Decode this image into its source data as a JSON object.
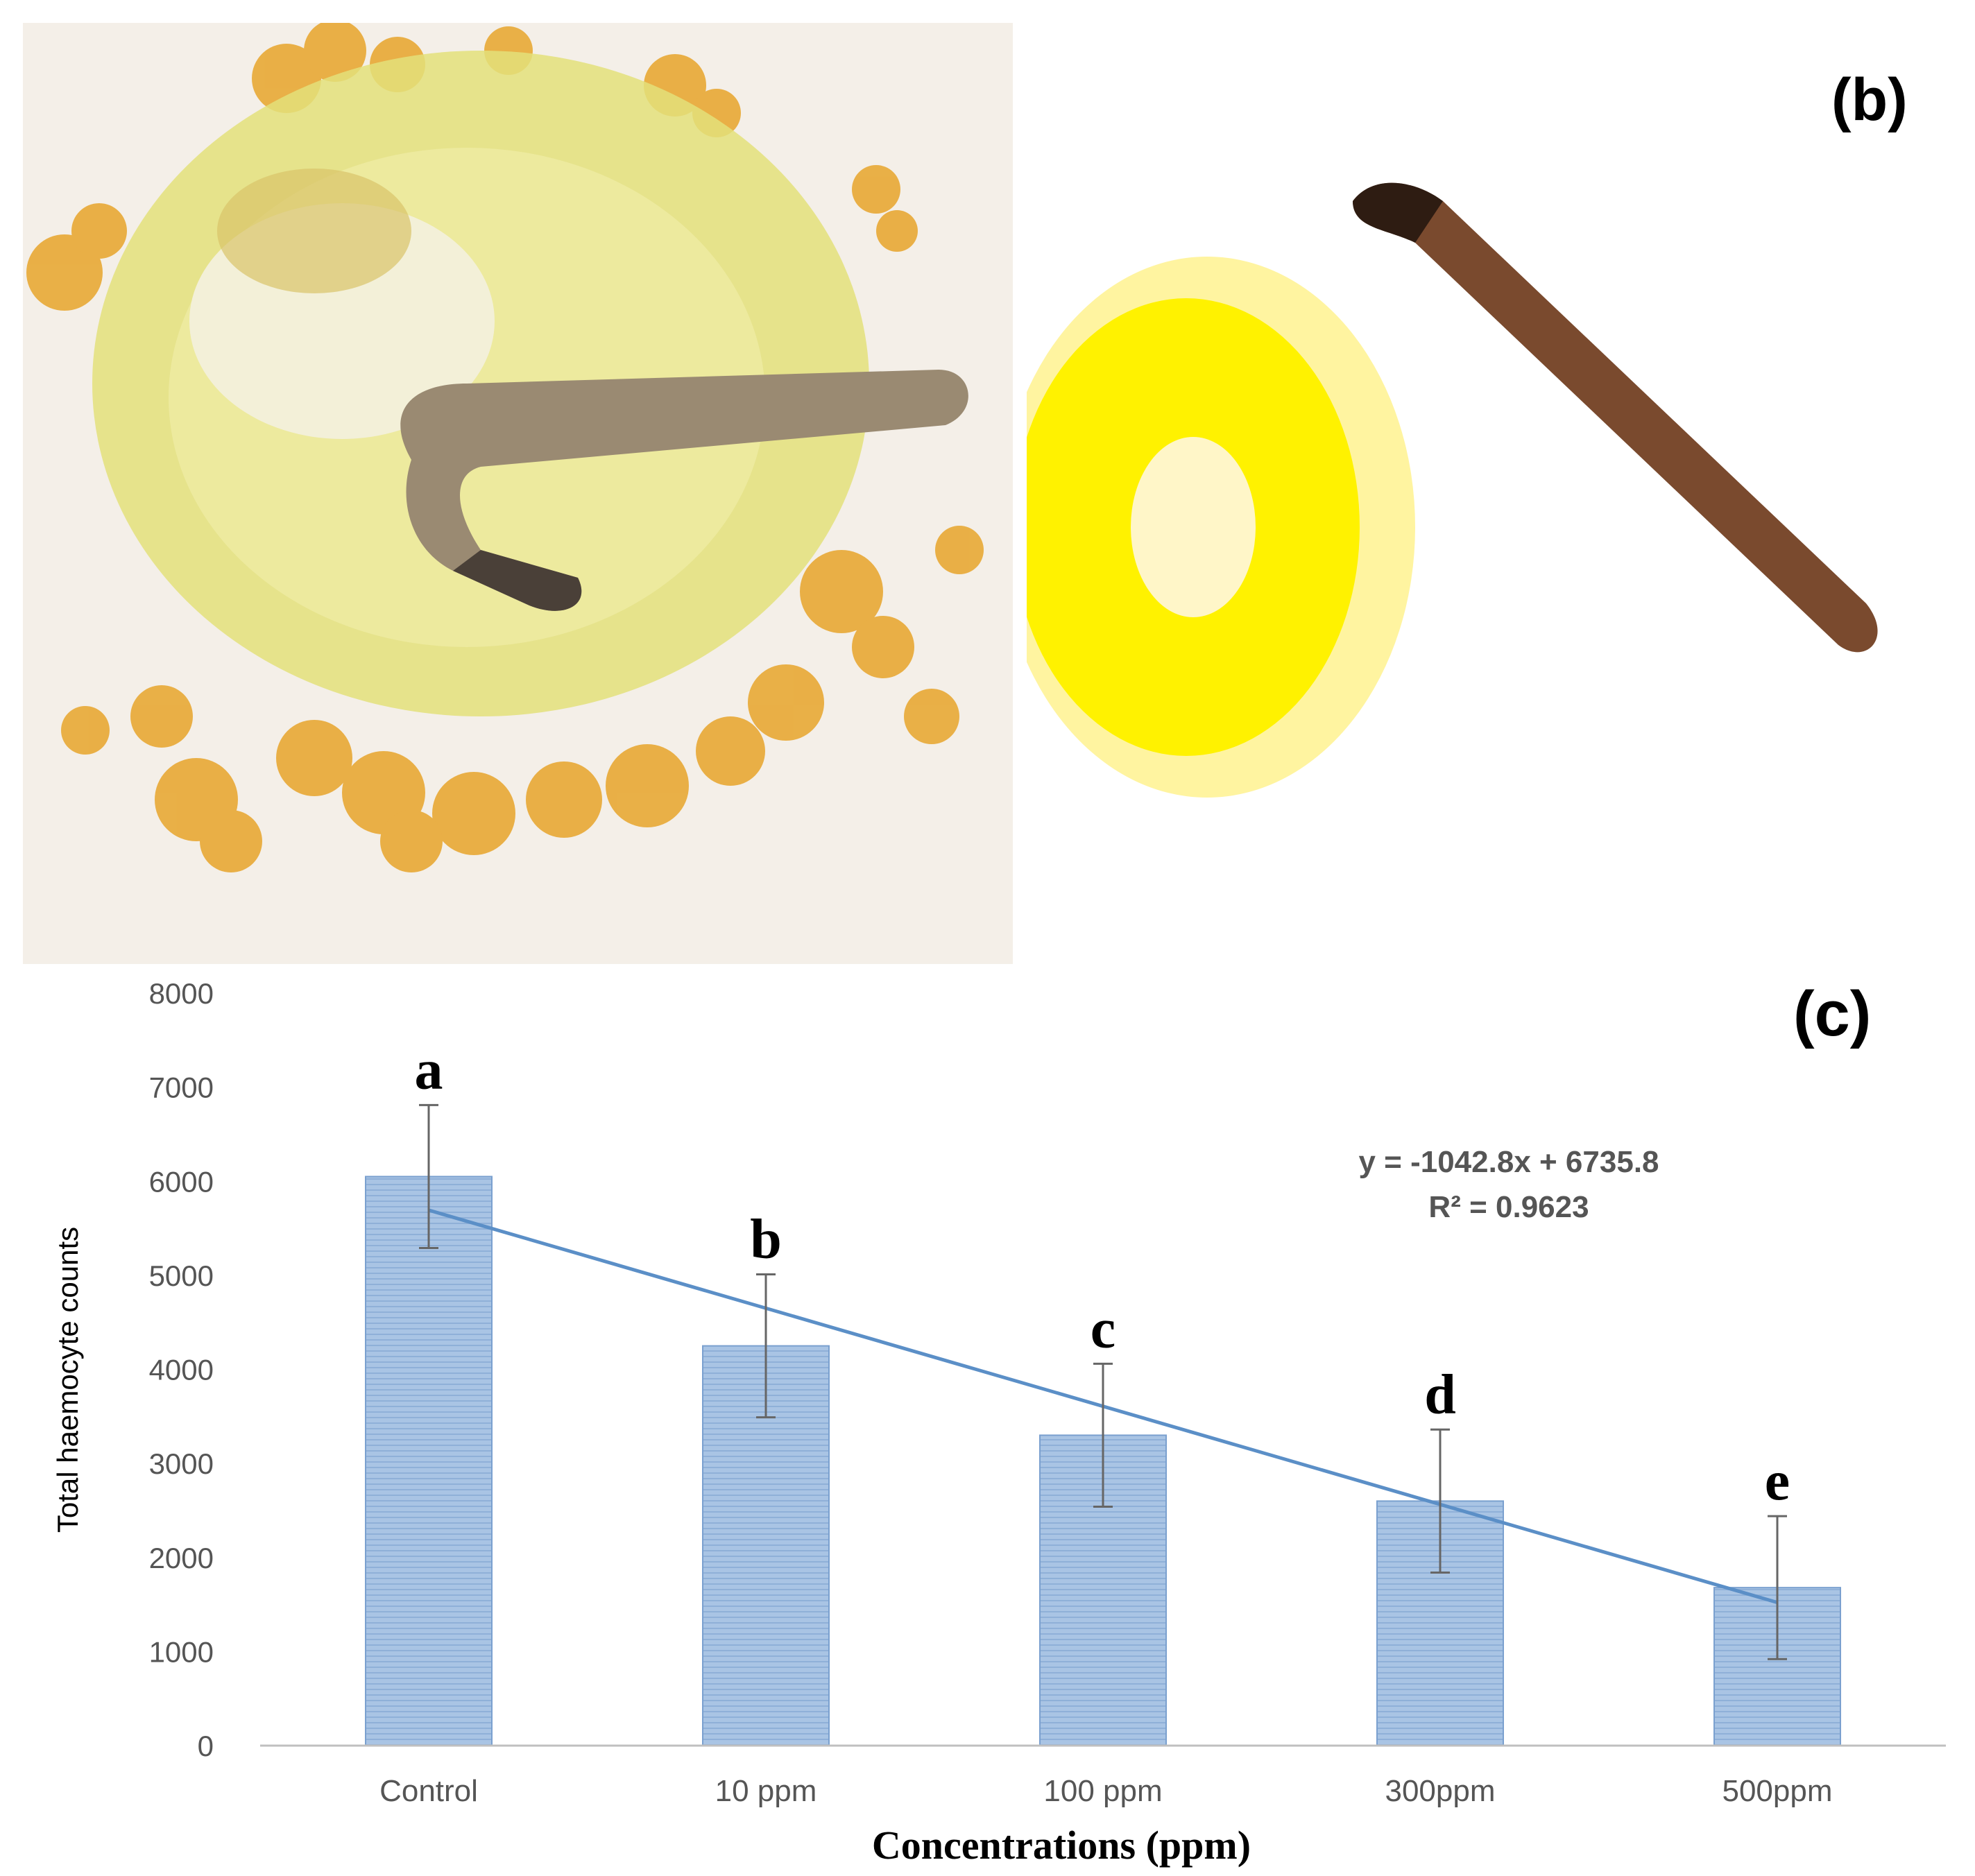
{
  "panels": {
    "b": {
      "label": "(b)"
    },
    "c": {
      "label": "(c)"
    }
  },
  "chart_data": {
    "type": "bar",
    "categories": [
      "Control",
      "10 ppm",
      "100 ppm",
      "300ppm",
      "500ppm"
    ],
    "values": [
      6050,
      4250,
      3300,
      2600,
      1680
    ],
    "errors": [
      760,
      760,
      760,
      760,
      760
    ],
    "significance_letters": [
      "a",
      "b",
      "c",
      "d",
      "e"
    ],
    "ylabel": "Total haemocyte counts",
    "xlabel": "Concentrations (ppm)",
    "ylim": [
      0,
      8000
    ],
    "yticks": [
      0,
      1000,
      2000,
      3000,
      4000,
      5000,
      6000,
      7000,
      8000
    ],
    "trendline": {
      "slope": -1042.8,
      "intercept": 6735.8
    },
    "equation": "y = -1042.8x + 6735.8",
    "r_squared": "R² = 0.9623",
    "colors": {
      "bar": "#a9c4e4",
      "bar_stripe": "#8fb0d8",
      "bar_edge": "#7aa0cf",
      "trend": "#5b8fc7",
      "axis": "#c0c0c0",
      "error": "#666666"
    }
  }
}
